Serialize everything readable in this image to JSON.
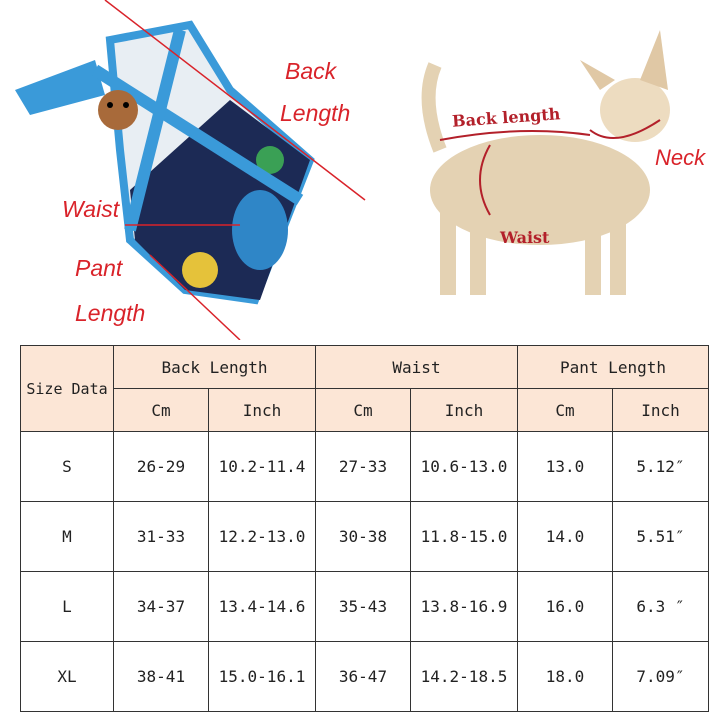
{
  "garment_labels": {
    "back": "Back",
    "length": "Length",
    "waist": "Waist",
    "pant": "Pant",
    "pant_length": "Length"
  },
  "dog_labels": {
    "back_length": "Back length",
    "neck": "Neck",
    "waist": "Waist"
  },
  "colors": {
    "label_red": "#d9232a",
    "header_bg": "#fce6d6",
    "garment_blue": "#3a9ad9",
    "garment_navy": "#1c2a55"
  },
  "table": {
    "corner": "Size Data",
    "groups": [
      "Back Length",
      "Waist",
      "Pant Length"
    ],
    "units": [
      "Cm",
      "Inch",
      "Cm",
      "Inch",
      "Cm",
      "Inch"
    ],
    "rows": [
      {
        "size": "S",
        "values": [
          "26-29",
          "10.2-11.4",
          "27-33",
          "10.6-13.0",
          "13.0",
          "5.12″"
        ]
      },
      {
        "size": "M",
        "values": [
          "31-33",
          "12.2-13.0",
          "30-38",
          "11.8-15.0",
          "14.0",
          "5.51″"
        ]
      },
      {
        "size": "L",
        "values": [
          "34-37",
          "13.4-14.6",
          "35-43",
          "13.8-16.9",
          "16.0",
          "6.3 ″"
        ]
      },
      {
        "size": "XL",
        "values": [
          "38-41",
          "15.0-16.1",
          "36-47",
          "14.2-18.5",
          "18.0",
          "7.09″"
        ]
      }
    ]
  }
}
